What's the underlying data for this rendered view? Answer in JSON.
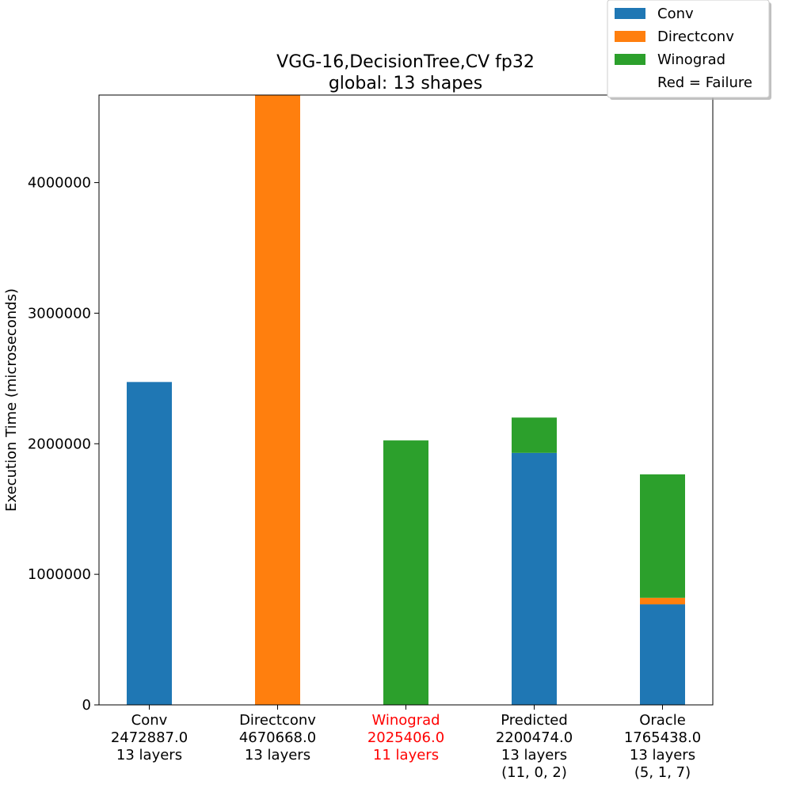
{
  "chart_data": {
    "type": "bar",
    "stacked": true,
    "title": [
      "VGG-16,DecisionTree,CV fp32",
      "global: 13 shapes"
    ],
    "xlabel": "",
    "ylabel": "Execution Time (microseconds)",
    "ylim": [
      0,
      4670668
    ],
    "yticks": [
      0,
      1000000,
      2000000,
      3000000,
      4000000
    ],
    "ytick_labels": [
      "0",
      "1000000",
      "2000000",
      "3000000",
      "4000000"
    ],
    "grid": false,
    "legend_position": "top-right",
    "legend": [
      {
        "name": "Conv",
        "color": "#1f77b4"
      },
      {
        "name": "Directconv",
        "color": "#ff7f0e"
      },
      {
        "name": "Winograd",
        "color": "#2ca02c"
      },
      {
        "name": "Red = Failure",
        "color": "none"
      }
    ],
    "categories": [
      {
        "lines": [
          "Conv",
          "2472887.0",
          "13 layers"
        ],
        "failure": false
      },
      {
        "lines": [
          "Directconv",
          "4670668.0",
          "13 layers"
        ],
        "failure": false
      },
      {
        "lines": [
          "Winograd",
          "2025406.0",
          "11 layers"
        ],
        "failure": true
      },
      {
        "lines": [
          "Predicted",
          "2200474.0",
          "13 layers",
          "(11, 0, 2)"
        ],
        "failure": false
      },
      {
        "lines": [
          "Oracle",
          "1765438.0",
          "13 layers",
          "(5, 1, 7)"
        ],
        "failure": false
      }
    ],
    "series": [
      {
        "name": "Conv",
        "color": "#1f77b4",
        "values": [
          2472887.0,
          0,
          0,
          1930000,
          770000
        ]
      },
      {
        "name": "Directconv",
        "color": "#ff7f0e",
        "values": [
          0,
          4670668.0,
          0,
          0,
          50000
        ]
      },
      {
        "name": "Winograd",
        "color": "#2ca02c",
        "values": [
          0,
          0,
          2025406.0,
          270474,
          945438
        ]
      }
    ]
  }
}
